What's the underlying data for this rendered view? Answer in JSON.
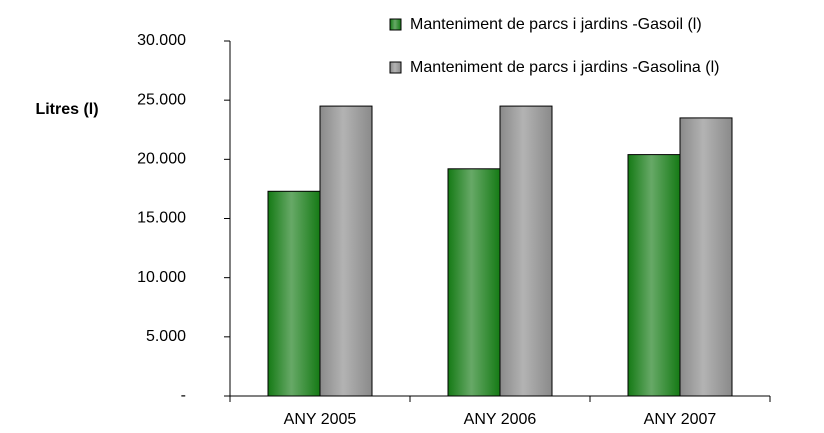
{
  "chart_data": {
    "type": "bar",
    "y_label": "Litres (l)",
    "categories": [
      "ANY 2005",
      "ANY 2006",
      "ANY 2007"
    ],
    "series": [
      {
        "name": "Manteniment de parcs i jardins -Gasoil (l)",
        "color": "#157a15",
        "values": [
          17300,
          19200,
          20400
        ]
      },
      {
        "name": "Manteniment de parcs i jardins -Gasolina (l)",
        "color": "#8a8a8a",
        "values": [
          24500,
          24500,
          23500
        ]
      }
    ],
    "ylim": [
      0,
      30000
    ],
    "yticks": [
      {
        "value": 0,
        "label": "-"
      },
      {
        "value": 5000,
        "label": "5.000"
      },
      {
        "value": 10000,
        "label": "10.000"
      },
      {
        "value": 15000,
        "label": "15.000"
      },
      {
        "value": 20000,
        "label": "20.000"
      },
      {
        "value": 25000,
        "label": "25.000"
      },
      {
        "value": 30000,
        "label": "30.000"
      }
    ],
    "grid": false
  }
}
